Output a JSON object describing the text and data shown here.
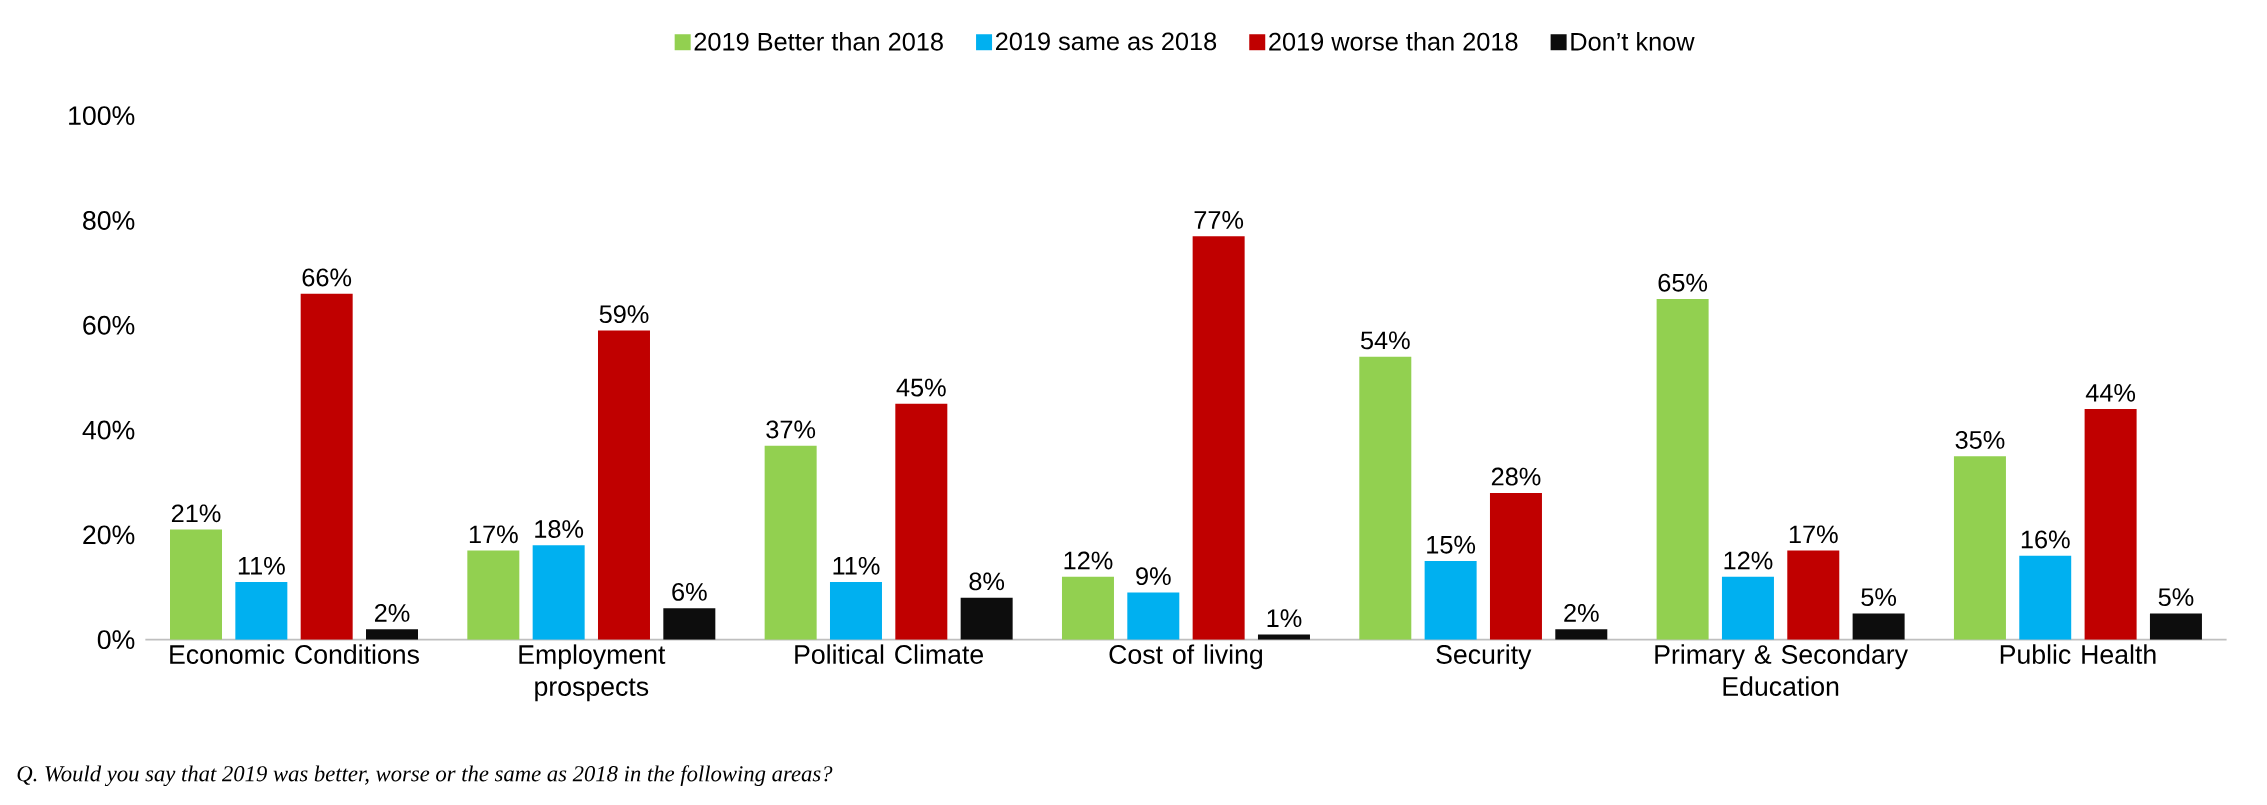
{
  "chart_data": {
    "type": "bar",
    "categories": [
      "Economic Conditions",
      "Employment prospects",
      "Political Climate",
      "Cost of living",
      "Security",
      "Primary & Secondary Education",
      "Public Health"
    ],
    "series": [
      {
        "name": "2019 Better than 2018",
        "color": "#92d050",
        "values": [
          21,
          17,
          37,
          12,
          54,
          65,
          35
        ],
        "value_labels": [
          "21%",
          "17%",
          "37%",
          "12%",
          "54%",
          "65%",
          "35%"
        ]
      },
      {
        "name": "2019  same as 2018",
        "color": "#00b0f0",
        "values": [
          11,
          18,
          11,
          9,
          15,
          12,
          16
        ],
        "value_labels": [
          "11%",
          "18%",
          "11%",
          "9%",
          "15%",
          "12%",
          "16%"
        ]
      },
      {
        "name": "2019 worse than 2018",
        "color": "#c00000",
        "values": [
          66,
          59,
          45,
          77,
          28,
          17,
          44
        ],
        "value_labels": [
          "66%",
          "59%",
          "45%",
          "77%",
          "28%",
          "17%",
          "44%"
        ]
      },
      {
        "name": "Don’t know",
        "color": "#0d0d0d",
        "values": [
          2,
          6,
          8,
          1,
          2,
          5,
          5
        ],
        "value_labels": [
          "2%",
          "6%",
          "8%",
          "1%",
          "2%",
          "5%",
          "5%"
        ]
      }
    ],
    "ylim": [
      0,
      100
    ],
    "yticks": [
      {
        "value": 0,
        "label": "0%"
      },
      {
        "value": 20,
        "label": "20%"
      },
      {
        "value": 40,
        "label": "40%"
      },
      {
        "value": 60,
        "label": "60%"
      },
      {
        "value": 80,
        "label": "80%"
      },
      {
        "value": 100,
        "label": "100%"
      }
    ],
    "legend": "top",
    "annotations": [
      "Q.  Would you say that 2019 was better, worse or the same as 2018 in the following areas?"
    ]
  }
}
